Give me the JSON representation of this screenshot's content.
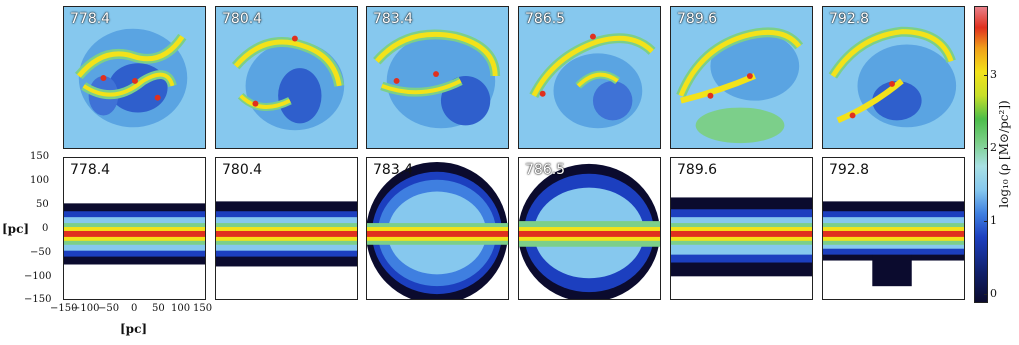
{
  "top_panels": [
    "778.4",
    "780.4",
    "783.4",
    "786.5",
    "789.6",
    "792.8"
  ],
  "bottom_panels": [
    "778.4",
    "780.4",
    "783.4",
    "786.5",
    "789.6",
    "792.8"
  ],
  "y_ticks": [
    "150",
    "100",
    "50",
    "0",
    "−50",
    "−100",
    "−150"
  ],
  "x_ticks": [
    "−150",
    "−100",
    "−50",
    "0",
    "50",
    "100",
    "150"
  ],
  "y_axis_label": "[pc]",
  "x_axis_label": "[pc]",
  "colorbar": {
    "label": "log₁₀ (ρ [M⊙/pc²])",
    "ticks": [
      "3",
      "2",
      "1",
      "0"
    ]
  }
}
